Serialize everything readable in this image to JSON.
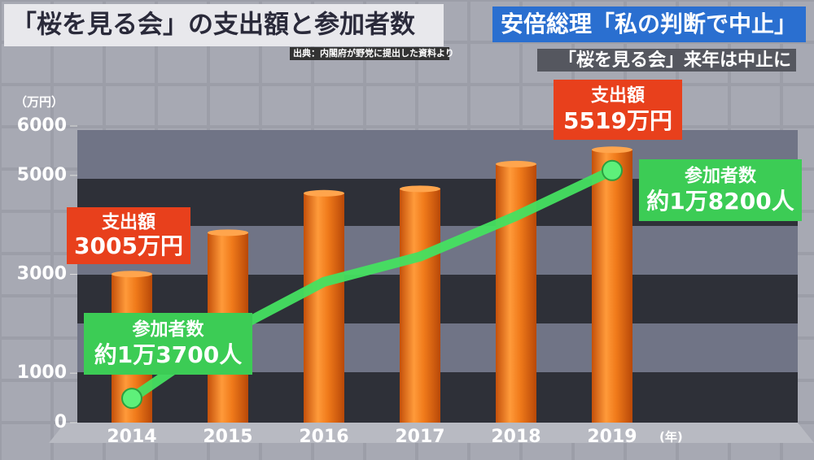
{
  "chart_data": {
    "type": "bar",
    "title": "「桜を見る会」の支出額と参加者数",
    "source": "出典：内閣府が野党に提出した資料より",
    "annotations": [
      "安倍総理「私の判断で中止」",
      "「桜を見る会」来年は中止に"
    ],
    "y_axis_label": "（万円）",
    "x_axis_label": "(年)",
    "categories": [
      "2014",
      "2015",
      "2016",
      "2017",
      "2018",
      "2019"
    ],
    "series": [
      {
        "name": "支出額",
        "type": "bar",
        "color": "#f07a1a",
        "values": [
          3005,
          3841,
          4639,
          4728,
          5229,
          5519
        ],
        "value_labels": [
          "3005万円",
          null,
          null,
          null,
          null,
          "5519万円"
        ]
      },
      {
        "name": "参加者数",
        "type": "line",
        "axis": "y2",
        "color": "#44e060",
        "values": [
          13700,
          15000,
          16000,
          16500,
          17300,
          18200
        ],
        "value_labels": [
          "約1万3700人",
          null,
          null,
          null,
          null,
          "約1万8200人"
        ]
      }
    ],
    "ylim": [
      0,
      6000
    ],
    "yticks": [
      0,
      1000,
      3000,
      5000,
      6000
    ],
    "y2lim": [
      13220,
      19080
    ]
  }
}
